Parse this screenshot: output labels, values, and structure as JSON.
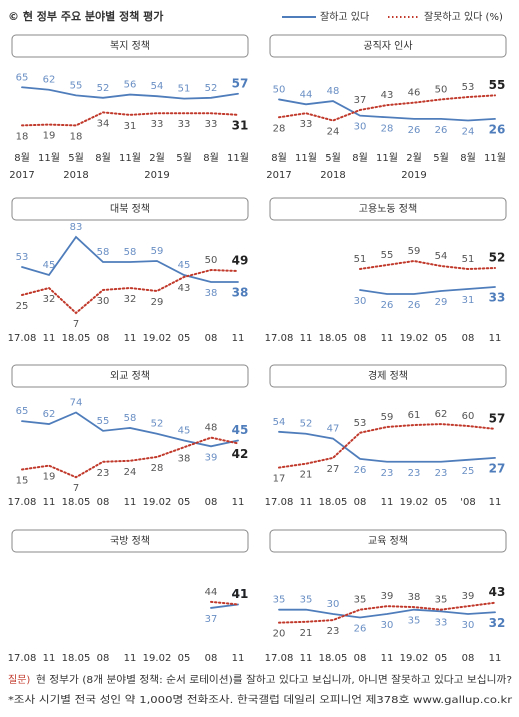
{
  "header": {
    "title": "© 현 정부 주요 분야별 정책 평가"
  },
  "footer": {
    "question_label": "질문)",
    "question": "현 정부가 (8개 분야별 정책: 순서 로테이션)를 잘하고 있다고 보십니까, 아니면 잘못하고 있다고 보십니까?",
    "note": "*조사 시기별 전국 성인 약 1,000명 전화조사. 한국갤럽 데일리 오피니언 제378호 www.gallup.co.kr"
  },
  "chart_data": [
    {
      "type": "line",
      "title": "복지 정책",
      "categories": [
        "8월\n2017",
        "11월",
        "5월\n2018",
        "8월",
        "11월",
        "2월\n2019",
        "5월",
        "8월",
        "11월"
      ],
      "ylim": [
        0,
        90
      ],
      "series": [
        {
          "name": "잘하고 있다",
          "color": "#4f7dbb",
          "values": [
            65,
            62,
            55,
            52,
            56,
            54,
            51,
            52,
            57
          ]
        },
        {
          "name": "잘못하고 있다 (%)",
          "color": "#c0392b",
          "values": [
            18,
            19,
            18,
            34,
            31,
            33,
            33,
            33,
            31
          ]
        }
      ]
    },
    {
      "type": "line",
      "title": "공직자 인사",
      "categories": [
        "8월\n2017",
        "11월",
        "5월\n2018",
        "8월",
        "11월",
        "2월\n2019",
        "5월",
        "8월",
        "11월"
      ],
      "ylim": [
        0,
        90
      ],
      "series": [
        {
          "color": "#4f7dbb",
          "values": [
            50,
            44,
            48,
            30,
            28,
            26,
            26,
            24,
            26
          ]
        },
        {
          "color": "#c0392b",
          "values": [
            28,
            33,
            24,
            37,
            43,
            46,
            50,
            53,
            55
          ]
        }
      ]
    },
    {
      "type": "line",
      "title": "대북 정책",
      "categories": [
        "17.08",
        "11",
        "18.05",
        "08",
        "11",
        "19.02",
        "05",
        "08",
        "11"
      ],
      "ylim": [
        0,
        90
      ],
      "series": [
        {
          "color": "#4f7dbb",
          "values": [
            53,
            45,
            83,
            58,
            58,
            59,
            45,
            38,
            38
          ]
        },
        {
          "color": "#c0392b",
          "values": [
            25,
            32,
            7,
            30,
            32,
            29,
            43,
            50,
            49
          ]
        }
      ]
    },
    {
      "type": "line",
      "title": "고용노동 정책",
      "categories": [
        "17.08",
        "11",
        "18.05",
        "08",
        "11",
        "19.02",
        "05",
        "08",
        "11"
      ],
      "ylim": [
        0,
        90
      ],
      "series": [
        {
          "color": "#4f7dbb",
          "values": [
            null,
            null,
            null,
            30,
            26,
            26,
            29,
            31,
            33
          ]
        },
        {
          "color": "#c0392b",
          "values": [
            null,
            null,
            null,
            51,
            55,
            59,
            54,
            51,
            52
          ]
        }
      ]
    },
    {
      "type": "line",
      "title": "외교 정책",
      "categories": [
        "17.08",
        "11",
        "18.05",
        "08",
        "11",
        "19.02",
        "05",
        "08",
        "11"
      ],
      "ylim": [
        0,
        90
      ],
      "series": [
        {
          "color": "#4f7dbb",
          "values": [
            65,
            62,
            74,
            55,
            58,
            52,
            45,
            39,
            45
          ]
        },
        {
          "color": "#c0392b",
          "values": [
            15,
            19,
            7,
            23,
            24,
            28,
            38,
            48,
            42
          ]
        }
      ]
    },
    {
      "type": "line",
      "title": "경제 정책",
      "categories": [
        "17.08",
        "11",
        "18.05",
        "08",
        "11",
        "19.02",
        "05",
        "'08",
        "11"
      ],
      "ylim": [
        0,
        90
      ],
      "series": [
        {
          "color": "#4f7dbb",
          "values": [
            54,
            52,
            47,
            26,
            23,
            23,
            23,
            25,
            27
          ]
        },
        {
          "color": "#c0392b",
          "values": [
            17,
            21,
            27,
            53,
            59,
            61,
            62,
            60,
            57
          ]
        }
      ]
    },
    {
      "type": "line",
      "title": "국방 정책",
      "categories": [
        "17.08",
        "11",
        "18.05",
        "08",
        "11",
        "19.02",
        "05",
        "08",
        "11"
      ],
      "ylim": [
        0,
        90
      ],
      "series": [
        {
          "color": "#4f7dbb",
          "values": [
            null,
            null,
            null,
            null,
            null,
            null,
            null,
            37,
            41
          ]
        },
        {
          "color": "#c0392b",
          "values": [
            null,
            null,
            null,
            null,
            null,
            null,
            null,
            44,
            41
          ]
        }
      ]
    },
    {
      "type": "line",
      "title": "교육 정책",
      "categories": [
        "17.08",
        "11",
        "18.05",
        "08",
        "11",
        "19.02",
        "05",
        "08",
        "11"
      ],
      "ylim": [
        0,
        90
      ],
      "series": [
        {
          "color": "#4f7dbb",
          "values": [
            35,
            35,
            30,
            26,
            30,
            35,
            33,
            30,
            32
          ]
        },
        {
          "color": "#c0392b",
          "values": [
            20,
            21,
            23,
            35,
            39,
            38,
            35,
            39,
            43
          ]
        }
      ]
    }
  ]
}
